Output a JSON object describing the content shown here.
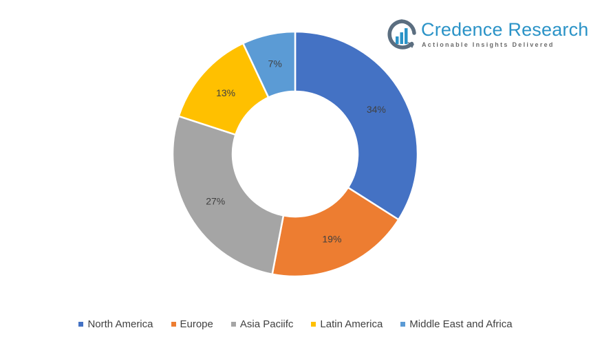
{
  "brand": {
    "name": "Credence Research",
    "tagline": "Actionable Insights Delivered",
    "name_color": "#2b93c7",
    "mark_color": "#5b6e80",
    "mark_accent": "#2b93c7"
  },
  "chart_data": {
    "type": "pie",
    "donut": true,
    "title": "",
    "categories": [
      "North America",
      "Europe",
      "Asia Paciifc",
      "Latin America",
      "Middle East and Africa"
    ],
    "values": [
      34,
      19,
      27,
      13,
      7
    ],
    "labels": [
      "34%",
      "19%",
      "27%",
      "13%",
      "7%"
    ],
    "colors": [
      "#4472c4",
      "#ed7d31",
      "#a5a5a5",
      "#ffc000",
      "#5b9bd5"
    ],
    "legend_position": "bottom",
    "start_angle": "top",
    "direction": "clockwise"
  }
}
